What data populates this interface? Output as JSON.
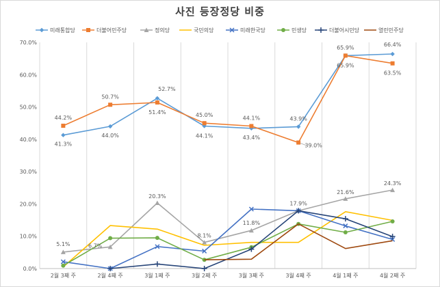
{
  "chart_data": {
    "type": "line",
    "title": "사진 등장정당 비중",
    "xlabel": "",
    "ylabel": "",
    "categories": [
      "2월3째주",
      "2월4째주",
      "3월1째주",
      "3월2째주",
      "3월3째주",
      "3월4째주",
      "4월1째주",
      "4월2째주"
    ],
    "ylim": [
      0,
      70
    ],
    "y_ticks": [
      "0.0%",
      "10.0%",
      "20.0%",
      "30.0%",
      "40.0%",
      "50.0%",
      "60.0%",
      "70.0%"
    ],
    "grid": "vertical",
    "legend_position": "top",
    "series": [
      {
        "name": "미래통합당",
        "color": "#5b9bd5",
        "marker": "diamond",
        "values": [
          41.3,
          44.0,
          52.7,
          44.1,
          43.4,
          43.9,
          65.9,
          66.4
        ]
      },
      {
        "name": "더불어민주당",
        "color": "#ed7d31",
        "marker": "square",
        "values": [
          44.2,
          50.7,
          51.4,
          45.0,
          44.1,
          39.0,
          65.9,
          63.5
        ]
      },
      {
        "name": "정의당",
        "color": "#a5a5a5",
        "marker": "triangle",
        "values": [
          5.1,
          6.7,
          20.3,
          8.1,
          11.8,
          17.9,
          21.6,
          24.3
        ]
      },
      {
        "name": "국민의당",
        "color": "#ffc000",
        "marker": "none",
        "values": [
          0.5,
          13.3,
          12.2,
          7.2,
          8.1,
          8.1,
          17.6,
          14.9
        ]
      },
      {
        "name": "미래한국당",
        "color": "#4472c4",
        "marker": "x",
        "values": [
          2.1,
          0.0,
          6.8,
          5.4,
          18.4,
          17.9,
          13.2,
          9.0
        ]
      },
      {
        "name": "민생당",
        "color": "#70ad47",
        "marker": "circle",
        "values": [
          0.9,
          9.4,
          9.5,
          2.7,
          6.6,
          13.8,
          11.2,
          14.6
        ]
      },
      {
        "name": "더불어시민당",
        "color": "#264478",
        "marker": "plus",
        "values": [
          null,
          0.0,
          1.4,
          0.0,
          6.0,
          17.9,
          15.4,
          9.9
        ]
      },
      {
        "name": "열린민주당",
        "color": "#9e480e",
        "marker": "none",
        "values": [
          null,
          null,
          null,
          2.7,
          2.9,
          13.8,
          6.2,
          8.6
        ]
      }
    ],
    "data_labels": [
      {
        "series": 0,
        "index": 0,
        "text": "41.3%"
      },
      {
        "series": 0,
        "index": 1,
        "text": "44.0%"
      },
      {
        "series": 0,
        "index": 2,
        "text": "52.7%"
      },
      {
        "series": 0,
        "index": 3,
        "text": "44.1%"
      },
      {
        "series": 0,
        "index": 4,
        "text": "43.4%"
      },
      {
        "series": 0,
        "index": 5,
        "text": "43.9%"
      },
      {
        "series": 0,
        "index": 6,
        "text": "65.9%"
      },
      {
        "series": 0,
        "index": 7,
        "text": "66.4%"
      },
      {
        "series": 1,
        "index": 0,
        "text": "44.2%"
      },
      {
        "series": 1,
        "index": 1,
        "text": "50.7%"
      },
      {
        "series": 1,
        "index": 2,
        "text": "51.4%"
      },
      {
        "series": 1,
        "index": 3,
        "text": "45.0%"
      },
      {
        "series": 1,
        "index": 4,
        "text": "44.1%"
      },
      {
        "series": 1,
        "index": 5,
        "text": "39.0%"
      },
      {
        "series": 1,
        "index": 6,
        "text": "65.9%"
      },
      {
        "series": 1,
        "index": 7,
        "text": "63.5%"
      },
      {
        "series": 2,
        "index": 0,
        "text": "5.1%"
      },
      {
        "series": 2,
        "index": 1,
        "text": "6.7%"
      },
      {
        "series": 2,
        "index": 2,
        "text": "20.3%"
      },
      {
        "series": 2,
        "index": 3,
        "text": "8.1%"
      },
      {
        "series": 2,
        "index": 4,
        "text": "11.8%"
      },
      {
        "series": 2,
        "index": 5,
        "text": "17.9%"
      },
      {
        "series": 2,
        "index": 6,
        "text": "21.6%"
      },
      {
        "series": 2,
        "index": 7,
        "text": "24.3%"
      }
    ]
  }
}
